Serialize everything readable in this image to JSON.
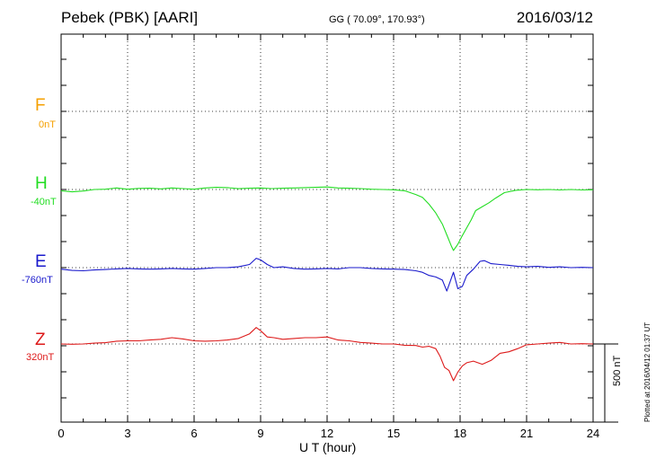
{
  "header": {
    "station": "Pebek (PBK)  [AARI]",
    "coordinates": "GG ( 70.09°, 170.93°)",
    "date": "2016/03/12"
  },
  "components": [
    {
      "letter": "F",
      "baseline": "0nT",
      "color": "#f5a000"
    },
    {
      "letter": "H",
      "baseline": "-40nT",
      "color": "#22dd22"
    },
    {
      "letter": "E",
      "baseline": "-760nT",
      "color": "#1a1acc"
    },
    {
      "letter": "Z",
      "baseline": "320nT",
      "color": "#dd1a1a"
    }
  ],
  "scale_bar": "500 nT",
  "plotted_note": "Plotted at 2016/04/12 01:37 UT",
  "chart_data": {
    "type": "line",
    "xlabel": "U T (hour)",
    "xlim": [
      0,
      24
    ],
    "x_ticks": [
      0,
      3,
      6,
      9,
      12,
      15,
      18,
      21,
      24
    ],
    "y_unit": "nT",
    "grid": true,
    "series": [
      {
        "name": "H",
        "x": [
          0,
          0.5,
          1,
          1.5,
          2,
          2.5,
          3,
          3.5,
          4,
          4.5,
          5,
          5.5,
          6,
          6.5,
          7,
          7.5,
          8,
          8.5,
          9,
          9.5,
          10,
          10.5,
          11,
          11.5,
          12,
          12.5,
          13,
          13.5,
          14,
          14.5,
          15,
          15.5,
          16,
          16.3,
          16.6,
          16.9,
          17.2,
          17.4,
          17.6,
          17.7,
          17.9,
          18.1,
          18.3,
          18.5,
          18.7,
          19,
          19.3,
          19.6,
          20,
          20.5,
          21,
          21.5,
          22,
          22.5,
          23,
          23.5,
          24
        ],
        "values": [
          -48,
          -55,
          -50,
          -40,
          -38,
          -30,
          -38,
          -33,
          -32,
          -36,
          -30,
          -34,
          -38,
          -30,
          -26,
          -28,
          -35,
          -32,
          -30,
          -34,
          -32,
          -30,
          -28,
          -26,
          -24,
          -30,
          -32,
          -34,
          -38,
          -40,
          -42,
          -48,
          -72,
          -90,
          -135,
          -190,
          -262,
          -330,
          -400,
          -430,
          -390,
          -335,
          -285,
          -235,
          -175,
          -150,
          -125,
          -95,
          -60,
          -45,
          -40,
          -42,
          -40,
          -43,
          -40,
          -43,
          -42
        ]
      },
      {
        "name": "E",
        "x": [
          0,
          0.5,
          1,
          1.5,
          2,
          2.5,
          3,
          3.5,
          4,
          4.5,
          5,
          5.5,
          6,
          6.5,
          7,
          7.5,
          8,
          8.5,
          8.8,
          9,
          9.3,
          9.6,
          10,
          10.5,
          11,
          11.5,
          12,
          12.5,
          13,
          13.5,
          14,
          14.5,
          15,
          15.5,
          16,
          16.3,
          16.6,
          16.9,
          17.2,
          17.4,
          17.55,
          17.7,
          17.9,
          18.1,
          18.3,
          18.6,
          18.9,
          19.1,
          19.4,
          19.8,
          20.2,
          20.6,
          21,
          21.5,
          22,
          22.5,
          23,
          23.5,
          24
        ],
        "values": [
          -770,
          -778,
          -780,
          -775,
          -772,
          -768,
          -765,
          -768,
          -770,
          -768,
          -765,
          -768,
          -770,
          -765,
          -760,
          -760,
          -755,
          -740,
          -700,
          -710,
          -740,
          -760,
          -755,
          -765,
          -770,
          -768,
          -765,
          -768,
          -760,
          -760,
          -765,
          -768,
          -770,
          -772,
          -780,
          -790,
          -810,
          -820,
          -840,
          -910,
          -850,
          -790,
          -895,
          -880,
          -810,
          -770,
          -720,
          -715,
          -735,
          -740,
          -745,
          -752,
          -755,
          -752,
          -758,
          -755,
          -760,
          -758,
          -760
        ]
      },
      {
        "name": "Z",
        "x": [
          0,
          0.5,
          1,
          1.5,
          2,
          2.5,
          3,
          3.5,
          4,
          4.5,
          5,
          5.5,
          6,
          6.5,
          7,
          7.5,
          8,
          8.5,
          8.8,
          9,
          9.3,
          9.6,
          10,
          10.5,
          11,
          11.5,
          12,
          12.5,
          13,
          13.5,
          14,
          14.5,
          15,
          15.5,
          16,
          16.3,
          16.6,
          16.9,
          17.1,
          17.3,
          17.5,
          17.7,
          17.9,
          18.1,
          18.3,
          18.6,
          19,
          19.4,
          19.8,
          20.2,
          20.6,
          21,
          21.5,
          22,
          22.5,
          23,
          23.5,
          24
        ],
        "values": [
          320,
          318,
          320,
          325,
          328,
          338,
          340,
          340,
          345,
          350,
          360,
          352,
          340,
          338,
          340,
          345,
          355,
          385,
          425,
          405,
          365,
          360,
          350,
          355,
          360,
          360,
          365,
          345,
          340,
          330,
          325,
          320,
          320,
          312,
          310,
          300,
          305,
          290,
          240,
          170,
          150,
          85,
          140,
          180,
          200,
          210,
          190,
          215,
          260,
          270,
          290,
          315,
          320,
          325,
          330,
          320,
          322,
          320
        ]
      }
    ]
  }
}
